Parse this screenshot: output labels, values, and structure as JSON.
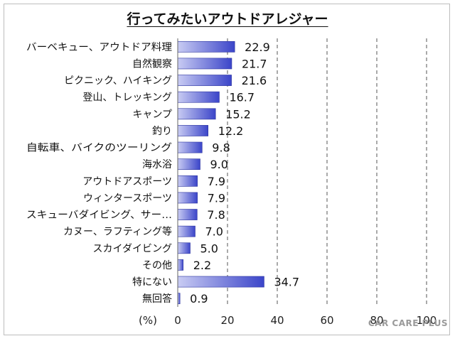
{
  "chart_data": {
    "type": "bar",
    "orientation": "horizontal",
    "title": "行ってみたいアウトドアレジャー",
    "unit_label": "(%)",
    "categories": [
      "バーベキュー、アウトドア料理",
      "自然観察",
      "ピクニック、ハイキング",
      "登山、トレッキング",
      "キャンプ",
      "釣り",
      "自転車、バイクのツーリング",
      "海水浴",
      "アウトドアスポーツ",
      "ウィンタースポーツ",
      "スキューバダイビング、サー…",
      "カヌー、ラフティング等",
      "スカイダイビング",
      "その他",
      "特にない",
      "無回答"
    ],
    "values": [
      22.9,
      21.7,
      21.6,
      16.7,
      15.2,
      12.2,
      9.8,
      9.0,
      7.9,
      7.9,
      7.8,
      7.0,
      5.0,
      2.2,
      34.7,
      0.9
    ],
    "value_labels": [
      "22.9",
      "21.7",
      "21.6",
      "16.7",
      "15.2",
      "12.2",
      "9.8",
      "9.0",
      "7.9",
      "7.9",
      "7.8",
      "7.0",
      "5.0",
      "2.2",
      "34.7",
      "0.9"
    ],
    "xlim": [
      0,
      100
    ],
    "xticks": [
      "0",
      "20",
      "40",
      "60",
      "80",
      "100"
    ],
    "grid": "vertical dashed",
    "bar_color_start": "#3b45c9",
    "bar_color_end": "#c9ccf3"
  },
  "watermark": "CAR CARE PLUS"
}
